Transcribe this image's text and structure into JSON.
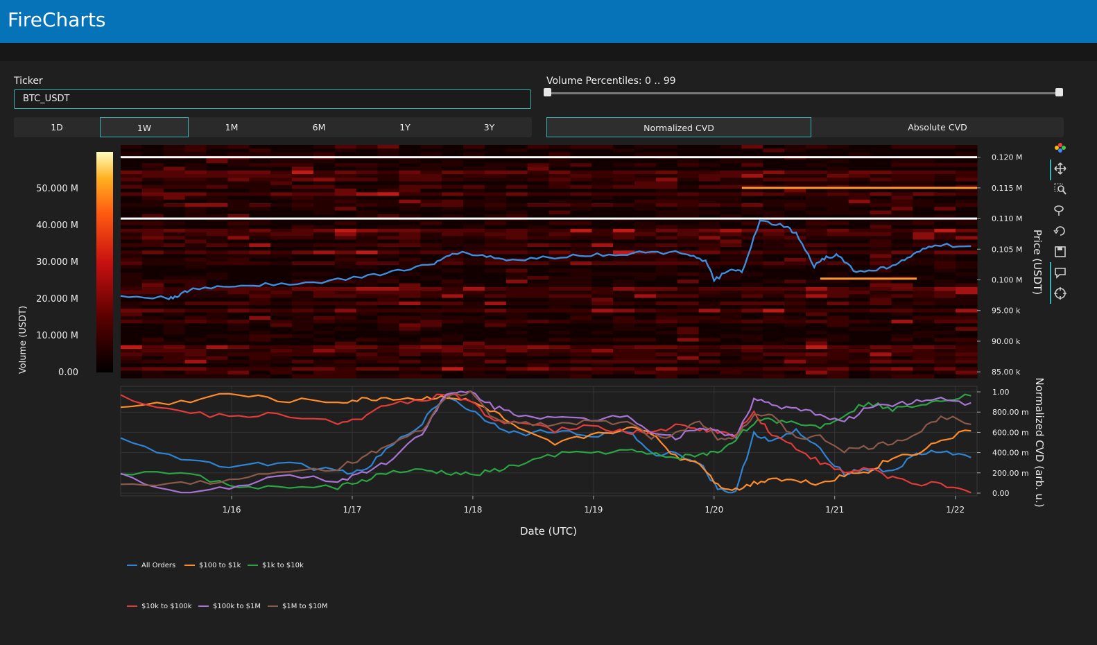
{
  "app": {
    "title": "FireCharts"
  },
  "ticker": {
    "label": "Ticker",
    "value": "BTC_USDT"
  },
  "timeframes": {
    "options": [
      "1D",
      "1W",
      "1M",
      "6M",
      "1Y",
      "3Y"
    ],
    "selected": "1W"
  },
  "volume_percentiles": {
    "label": "Volume Percentiles: 0 .. 99",
    "min": 0,
    "max": 99
  },
  "cvd_modes": {
    "options": [
      "Normalized CVD",
      "Absolute CVD"
    ],
    "selected": "Normalized CVD"
  },
  "toolbar": {
    "icons": [
      "plotly-logo-icon",
      "pan-icon",
      "zoom-icon",
      "lasso-icon",
      "reset-icon",
      "save-icon",
      "hover-icon",
      "crosshair-icon"
    ]
  },
  "colors": {
    "accent": "#3cb3b3",
    "header": "#0672b8"
  },
  "chart_data": [
    {
      "type": "heatmap",
      "title": "",
      "xlabel": "",
      "ylabel": "Price (USDT)",
      "ylim": [
        84000,
        122000
      ],
      "yticks": [
        "85.00 k",
        "90.00 k",
        "95.00 k",
        "0.100 M",
        "0.105 M",
        "0.110 M",
        "0.115 M",
        "0.120 M"
      ],
      "colorbar": {
        "label": "Volume (USDT)",
        "ticks": [
          "0.00",
          "10.000 M",
          "20.000 M",
          "30.000 M",
          "40.000 M",
          "50.000 M"
        ],
        "range": [
          0,
          60000000
        ]
      },
      "bright_levels": [
        {
          "price": 120000,
          "intensity": 1.0
        },
        {
          "price": 110000,
          "intensity": 1.0
        },
        {
          "price": 115000,
          "intensity": 0.55
        },
        {
          "price": 100200,
          "intensity": 0.5
        }
      ],
      "price_series": {
        "name": "Price",
        "x_days": [
          0,
          0.4,
          0.5,
          0.6,
          0.9,
          1.2,
          1.6,
          2.0,
          2.3,
          2.6,
          2.75,
          3.0,
          3.2,
          3.5,
          3.8,
          4.1,
          4.4,
          4.7,
          4.85,
          4.92,
          5.05,
          5.15,
          5.3,
          5.5,
          5.6,
          5.75,
          5.85,
          5.95,
          6.1,
          6.3,
          6.45,
          6.6,
          6.75,
          7.05
        ],
        "values": [
          97300,
          97000,
          97600,
          98500,
          99000,
          99300,
          99500,
          100500,
          101500,
          102500,
          104500,
          104000,
          103200,
          103600,
          104000,
          104200,
          104500,
          104400,
          103000,
          100000,
          101500,
          101300,
          109500,
          108800,
          107500,
          102200,
          103800,
          104000,
          101200,
          101800,
          102700,
          104300,
          105800,
          105300
        ]
      }
    },
    {
      "type": "line",
      "xlabel": "Date (UTC)",
      "ylabel": "Normalized CVD (arb. u.)",
      "ylim": [
        0,
        1
      ],
      "yticks": [
        "0.00",
        "200.00 m",
        "400.00 m",
        "600.00 m",
        "800.00 m",
        "1.00"
      ],
      "x_tick_labels": [
        "1/16",
        "1/17",
        "1/18",
        "1/19",
        "1/20",
        "1/21",
        "1/22"
      ],
      "x_days": [
        0,
        0.5,
        0.9,
        1.3,
        1.8,
        2.0,
        2.2,
        2.5,
        2.7,
        2.9,
        3.1,
        3.3,
        3.6,
        3.9,
        4.2,
        4.4,
        4.6,
        4.8,
        4.95,
        5.1,
        5.25,
        5.4,
        5.6,
        5.8,
        6.0,
        6.2,
        6.4,
        6.6,
        6.8,
        7.05
      ],
      "series": [
        {
          "name": "All Orders",
          "color": "#2f84d4",
          "values": [
            0.52,
            0.35,
            0.27,
            0.3,
            0.22,
            0.2,
            0.42,
            0.7,
            0.97,
            0.82,
            0.68,
            0.58,
            0.62,
            0.56,
            0.62,
            0.38,
            0.4,
            0.3,
            0.05,
            0.0,
            0.6,
            0.5,
            0.62,
            0.42,
            0.2,
            0.24,
            0.22,
            0.38,
            0.42,
            0.35
          ]
        },
        {
          "name": "$100 to $1k",
          "color": "#ff8c2a",
          "values": [
            0.85,
            0.9,
            0.98,
            0.92,
            0.9,
            0.92,
            0.94,
            0.93,
            0.96,
            0.9,
            0.8,
            0.62,
            0.48,
            0.58,
            0.64,
            0.6,
            0.36,
            0.3,
            0.08,
            0.03,
            0.1,
            0.15,
            0.12,
            0.1,
            0.18,
            0.22,
            0.35,
            0.4,
            0.52,
            0.62
          ]
        },
        {
          "name": "$1k to $10k",
          "color": "#2ca444",
          "values": [
            0.2,
            0.2,
            0.08,
            0.05,
            0.06,
            0.12,
            0.2,
            0.22,
            0.2,
            0.18,
            0.22,
            0.28,
            0.38,
            0.4,
            0.42,
            0.38,
            0.35,
            0.38,
            0.4,
            0.54,
            0.7,
            0.72,
            0.7,
            0.65,
            0.78,
            0.9,
            0.82,
            0.88,
            0.92,
            0.98
          ]
        },
        {
          "name": "$10k to $100k",
          "color": "#e33a3a",
          "values": [
            0.95,
            0.8,
            0.75,
            0.78,
            0.7,
            0.72,
            0.88,
            0.92,
            0.98,
            0.9,
            0.72,
            0.7,
            0.62,
            0.66,
            0.6,
            0.6,
            0.66,
            0.64,
            0.6,
            0.58,
            0.8,
            0.58,
            0.45,
            0.3,
            0.2,
            0.25,
            0.15,
            0.1,
            0.08,
            0.0
          ]
        },
        {
          "name": "$100k to $1M",
          "color": "#a874d4",
          "values": [
            0.18,
            0.0,
            0.05,
            0.18,
            0.12,
            0.2,
            0.3,
            0.6,
            0.97,
            1.0,
            0.85,
            0.78,
            0.74,
            0.72,
            0.78,
            0.6,
            0.55,
            0.66,
            0.6,
            0.56,
            0.92,
            0.88,
            0.82,
            0.78,
            0.7,
            0.85,
            0.88,
            0.9,
            0.95,
            0.88
          ]
        },
        {
          "name": "$1M to $10M",
          "color": "#8c5a4a",
          "values": [
            0.1,
            0.1,
            0.12,
            0.2,
            0.25,
            0.35,
            0.45,
            0.62,
            0.95,
            1.0,
            0.72,
            0.7,
            0.68,
            0.7,
            0.7,
            0.55,
            0.58,
            0.72,
            0.55,
            0.56,
            0.78,
            0.75,
            0.55,
            0.55,
            0.42,
            0.45,
            0.5,
            0.58,
            0.76,
            0.7
          ]
        }
      ]
    }
  ]
}
